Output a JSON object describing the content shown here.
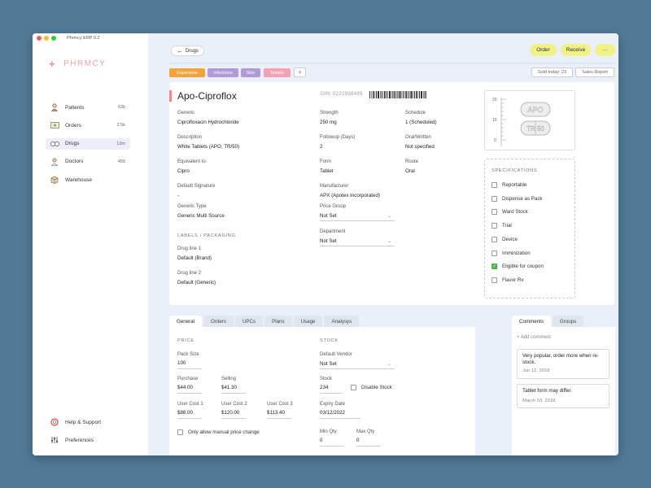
{
  "window": {
    "title": "Phrmcy ERP 0.2"
  },
  "brand": {
    "name": "PHRMCY"
  },
  "nav": [
    {
      "label": "Patients",
      "count": "63k"
    },
    {
      "label": "Orders",
      "count": "2.5k"
    },
    {
      "label": "Drugs",
      "count": "12m"
    },
    {
      "label": "Doctors",
      "count": "459"
    },
    {
      "label": "Warehouse",
      "count": ""
    }
  ],
  "nav_bottom": [
    {
      "label": "Help & Support"
    },
    {
      "label": "Preferences"
    }
  ],
  "topbar": {
    "back_label": "Drugs",
    "order_label": "Order",
    "receive_label": "Receive",
    "more_label": "···"
  },
  "tags": [
    "Expensive",
    "Infections",
    "Skin",
    "Tablets"
  ],
  "tag_add": "+",
  "colors": {
    "expensive": "#f2a43a",
    "infections": "#b19ad8",
    "skin": "#b19ad8",
    "tablets": "#f4a0b5",
    "accent": "#ee8a8a",
    "action": "#f0f287"
  },
  "stats": {
    "sold_today": "Sold today: 23",
    "sales_report": "Sales Report"
  },
  "drug": {
    "name": "Apo-Ciproflox",
    "din": "DIN: 0222938495",
    "fields": {
      "generic": {
        "label": "Generic",
        "value": "Ciprofloxacin Hydrochloride"
      },
      "description": {
        "label": "Description",
        "value": "White Tablets (APO, TR/50)"
      },
      "equivalent": {
        "label": "Equivalent to",
        "value": "Cipro"
      },
      "default_signature": {
        "label": "Default Signature",
        "value": "-"
      },
      "generic_type": {
        "label": "Generic Type",
        "value": "Generic Multi Source"
      },
      "strength": {
        "label": "Strength",
        "value": "250 mg"
      },
      "followup": {
        "label": "Followup (Days)",
        "value": "2"
      },
      "form": {
        "label": "Form",
        "value": "Tablet"
      },
      "manufacturer": {
        "label": "Manufacturer",
        "value": "APX (Apotex Incorporated)"
      },
      "price_group": {
        "label": "Price Group",
        "value": "Not Set"
      },
      "department": {
        "label": "Department",
        "value": "Not Set"
      },
      "schedule": {
        "label": "Schedule",
        "value": "1 (Scheduled)"
      },
      "oral_written": {
        "label": "Oral/Written",
        "value": "Not specified"
      },
      "route": {
        "label": "Route",
        "value": "Oral"
      }
    },
    "labels_packaging": {
      "title": "LABELS / PACKAGING",
      "line1": {
        "label": "Drug line 1",
        "value": "Default (Brand)"
      },
      "line2": {
        "label": "Drug line 2",
        "value": "Default (Generic)"
      }
    },
    "image": {
      "imprint_top": "APO",
      "imprint_bottom": "TR 50",
      "ruler": [
        "20",
        "10",
        "0"
      ]
    }
  },
  "specifications": {
    "title": "SPECIFICATIONS",
    "items": [
      {
        "label": "Reportable",
        "checked": false
      },
      {
        "label": "Dispense as Pack",
        "checked": false
      },
      {
        "label": "Ward Stock",
        "checked": false
      },
      {
        "label": "Trial",
        "checked": false
      },
      {
        "label": "Device",
        "checked": false
      },
      {
        "label": "Imminization",
        "checked": false
      },
      {
        "label": "Eligible for coupon",
        "checked": true
      },
      {
        "label": "Flavor Rx",
        "checked": false
      }
    ]
  },
  "tabs": [
    "General",
    "Orders",
    "UPCs",
    "Plans",
    "Usage",
    "Analysys"
  ],
  "price": {
    "title": "PRICE",
    "pack_size": {
      "label": "Pack Size",
      "value": "100"
    },
    "purchase": {
      "label": "Purchase",
      "value": "$44.00"
    },
    "selling": {
      "label": "Selling",
      "value": "$41.30"
    },
    "user_cost_1": {
      "label": "User Cost 1",
      "value": "$88.00"
    },
    "user_cost_2": {
      "label": "User Cost 2",
      "value": "$120.00"
    },
    "user_cost_3": {
      "label": "User Cost 3",
      "value": "$113.40"
    },
    "manual_change": {
      "label": "Only allow manual price change",
      "checked": false
    }
  },
  "stock": {
    "title": "STOCK",
    "default_vendor": {
      "label": "Default Vendor",
      "value": "Not Set"
    },
    "stock": {
      "label": "Stock",
      "value": "234"
    },
    "disable_stock": {
      "label": "Disable Stock",
      "checked": false
    },
    "expiry": {
      "label": "Expiry Date",
      "value": "03/12/2022"
    },
    "min_qty": {
      "label": "Min Qty",
      "value": "0"
    },
    "max_qty": {
      "label": "Max Qty",
      "value": "0"
    }
  },
  "comments": {
    "tabs": [
      "Comments",
      "Groups"
    ],
    "add_label": "+ Add comment",
    "items": [
      {
        "text": "Very popular, order more when re-stock.",
        "date": "Jun 12, 2018"
      },
      {
        "text": "Tablet form may differ.",
        "date": "March 03, 2018"
      }
    ]
  }
}
